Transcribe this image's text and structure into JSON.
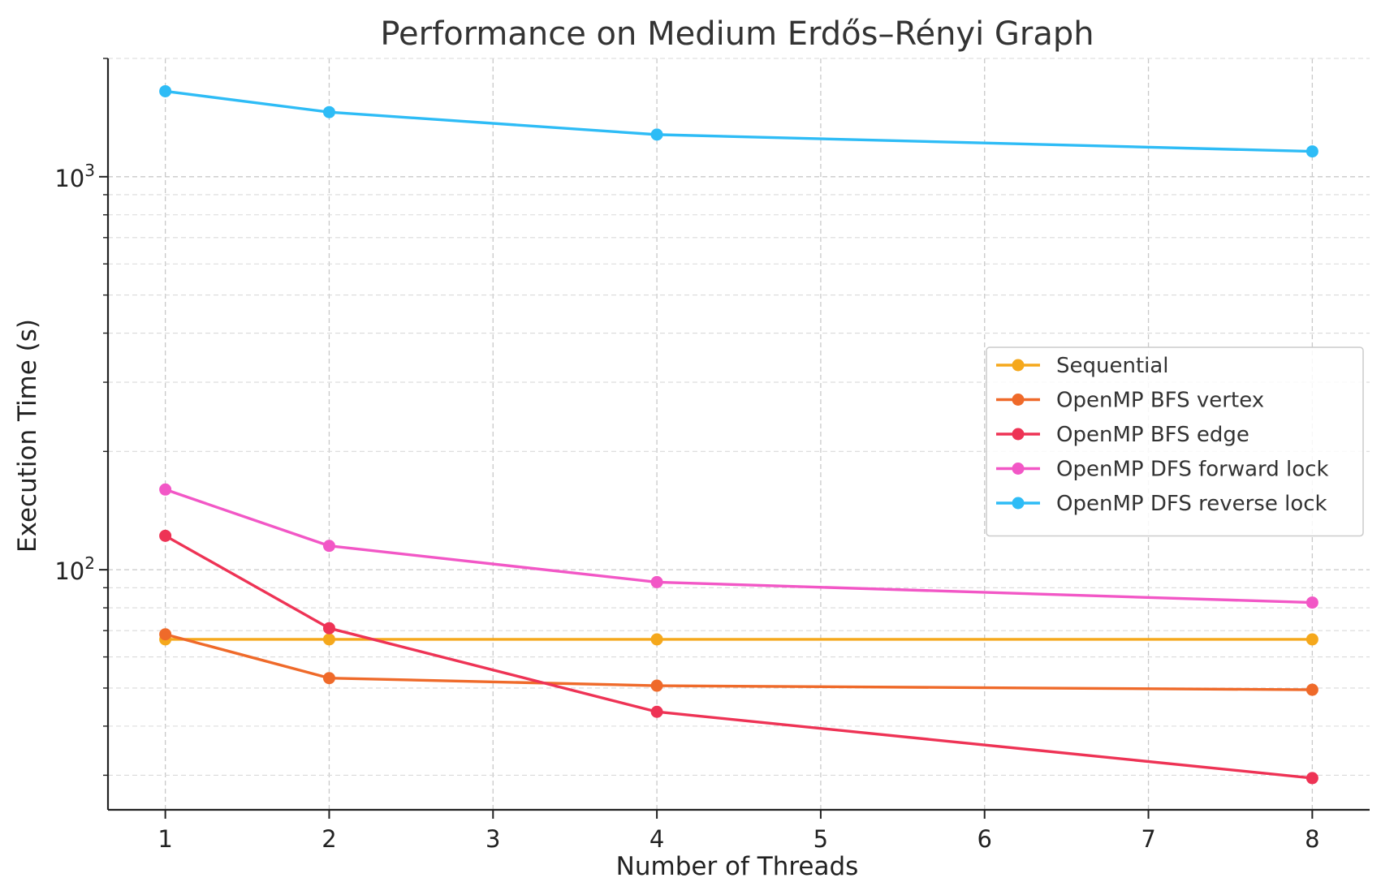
{
  "chart_data": {
    "type": "line",
    "title": "Performance on Medium Erdős–Rényi Graph",
    "xlabel": "Number of Threads",
    "ylabel": "Execution Time (s)",
    "xlim": [
      0.65,
      8.35
    ],
    "ylim": [
      24.5,
      2000
    ],
    "yscale": "log",
    "grid": true,
    "legend_position": "center-right",
    "xticks": [
      1,
      2,
      3,
      4,
      5,
      6,
      7,
      8
    ],
    "yticks": [
      {
        "value": 100,
        "base": "10",
        "exp": "2"
      },
      {
        "value": 1000,
        "base": "10",
        "exp": "3"
      }
    ],
    "x": [
      1,
      2,
      4,
      8
    ],
    "series": [
      {
        "name": "Sequential",
        "color": "#f5a81c",
        "values": [
          66.5,
          66.5,
          66.5,
          66.5
        ]
      },
      {
        "name": "OpenMP BFS vertex",
        "color": "#ef6a2a",
        "values": [
          68.5,
          53,
          50.7,
          49.5
        ]
      },
      {
        "name": "OpenMP BFS edge",
        "color": "#ee3355",
        "values": [
          122,
          71,
          43.5,
          29.5
        ]
      },
      {
        "name": "OpenMP DFS forward lock",
        "color": "#f257c6",
        "values": [
          160,
          115,
          93,
          82.5
        ]
      },
      {
        "name": "OpenMP DFS reverse lock",
        "color": "#2ebcf6",
        "values": [
          1650,
          1460,
          1280,
          1160
        ]
      }
    ]
  }
}
